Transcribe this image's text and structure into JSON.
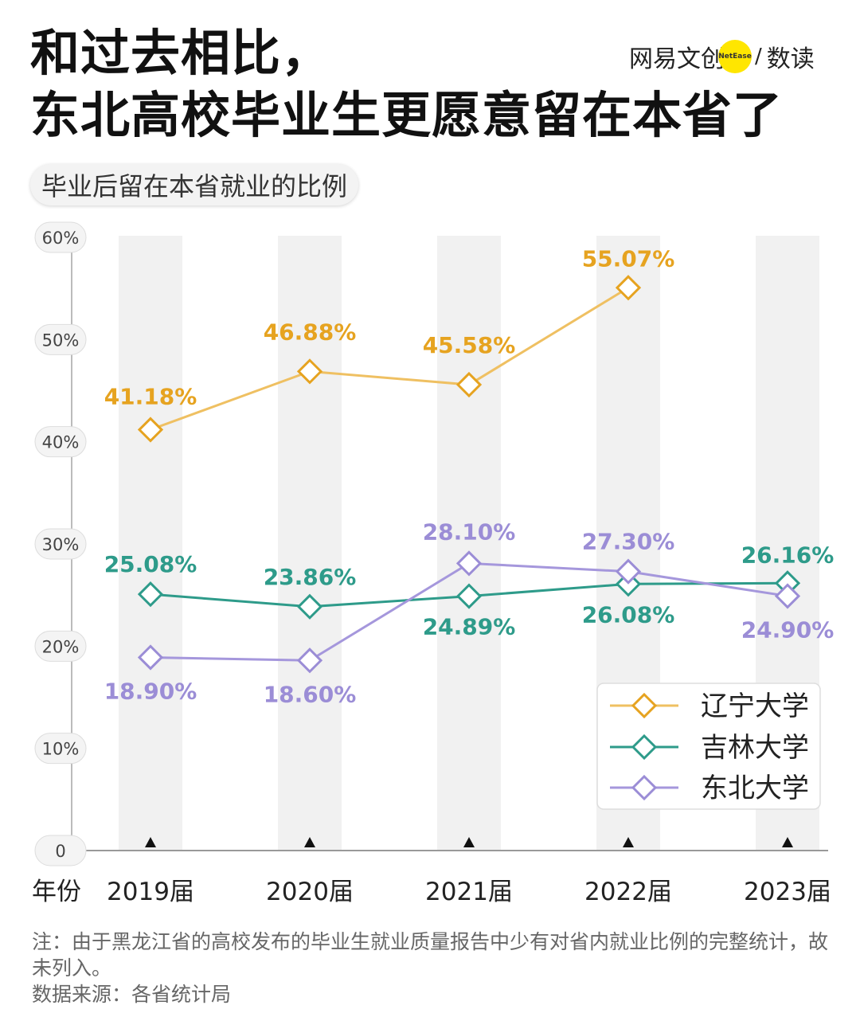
{
  "header": {
    "title_line1": "和过去相比，",
    "title_line2": "东北高校毕业生更愿意留在本省了",
    "brand": {
      "name_cn": "网易文创",
      "logo_text": "NetEase",
      "slash": "/",
      "section": "数读",
      "accent_color": "#ffe600"
    }
  },
  "subtitle": "毕业后留在本省就业的比例",
  "chart_data": {
    "type": "line",
    "title": "毕业后留在本省就业的比例",
    "xlabel": "年份",
    "categories": [
      "2019届",
      "2020届",
      "2021届",
      "2022届",
      "2023届"
    ],
    "ylim": [
      0,
      60
    ],
    "yticks": [
      0,
      10,
      20,
      30,
      40,
      50,
      60
    ],
    "ytick_labels": [
      "0",
      "10%",
      "20%",
      "30%",
      "40%",
      "50%",
      "60%"
    ],
    "grid": false,
    "column_bands": true,
    "legend_position": "bottom-right",
    "series": [
      {
        "name": "辽宁大学",
        "color": "#e6a320",
        "line_color": "#efc062",
        "values": [
          41.18,
          46.88,
          45.58,
          55.07,
          null
        ],
        "labels": [
          "41.18%",
          "46.88%",
          "45.58%",
          "55.07%",
          ""
        ]
      },
      {
        "name": "吉林大学",
        "color": "#2e9b8a",
        "line_color": "#2e9b8a",
        "values": [
          25.08,
          23.86,
          24.89,
          26.08,
          26.16
        ],
        "labels": [
          "25.08%",
          "23.86%",
          "24.89%",
          "26.08%",
          "26.16%"
        ]
      },
      {
        "name": "东北大学",
        "color": "#9b8dd6",
        "line_color": "#a597dc",
        "values": [
          18.9,
          18.6,
          28.1,
          27.3,
          24.9
        ],
        "labels": [
          "18.90%",
          "18.60%",
          "28.10%",
          "27.30%",
          "24.90%"
        ]
      }
    ]
  },
  "notes": {
    "line1": "注：由于黑龙江省的高校发布的毕业生就业质量报告中少有对省内就业比例的完整统计，故未列入。",
    "line2": "数据来源：各省统计局"
  }
}
